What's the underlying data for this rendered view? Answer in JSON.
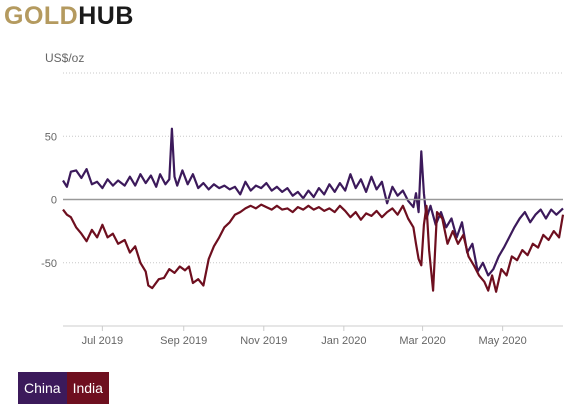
{
  "header": {
    "logo_gold": "GOLD",
    "logo_hub": "HUB"
  },
  "legend": [
    {
      "label": "China",
      "color": "#3c1a5b"
    },
    {
      "label": "India",
      "color": "#6e0f1f"
    }
  ],
  "chart_data": {
    "type": "line",
    "unit_label": "US$/oz",
    "ylim": [
      -100,
      100
    ],
    "yticks": [
      {
        "value": 50,
        "label": "50"
      },
      {
        "value": 0,
        "label": "0"
      },
      {
        "value": -50,
        "label": "-50"
      }
    ],
    "xlim": [
      "2019-06-15",
      "2020-06-30"
    ],
    "xticks": [
      {
        "date": "2019-07-15",
        "label": "Jul 2019"
      },
      {
        "date": "2019-09-15",
        "label": "Sep 2019"
      },
      {
        "date": "2019-11-15",
        "label": "Nov 2019"
      },
      {
        "date": "2020-01-15",
        "label": "Jan 2020"
      },
      {
        "date": "2020-03-15",
        "label": "Mar 2020"
      },
      {
        "date": "2020-05-15",
        "label": "May 2020"
      }
    ],
    "grid": true,
    "legend_position": "bottom-left",
    "series": [
      {
        "name": "China",
        "color": "#3c1a5b",
        "points": [
          [
            "2019-06-15",
            15
          ],
          [
            "2019-06-18",
            10
          ],
          [
            "2019-06-21",
            22
          ],
          [
            "2019-06-25",
            23
          ],
          [
            "2019-06-29",
            17
          ],
          [
            "2019-07-03",
            24
          ],
          [
            "2019-07-07",
            12
          ],
          [
            "2019-07-11",
            14
          ],
          [
            "2019-07-15",
            9
          ],
          [
            "2019-07-19",
            16
          ],
          [
            "2019-07-23",
            11
          ],
          [
            "2019-07-27",
            15
          ],
          [
            "2019-08-01",
            11
          ],
          [
            "2019-08-05",
            18
          ],
          [
            "2019-08-09",
            11
          ],
          [
            "2019-08-13",
            20
          ],
          [
            "2019-08-17",
            13
          ],
          [
            "2019-08-21",
            19
          ],
          [
            "2019-08-25",
            10
          ],
          [
            "2019-08-28",
            20
          ],
          [
            "2019-09-01",
            12
          ],
          [
            "2019-09-04",
            16
          ],
          [
            "2019-09-06",
            56
          ],
          [
            "2019-09-08",
            18
          ],
          [
            "2019-09-10",
            11
          ],
          [
            "2019-09-14",
            23
          ],
          [
            "2019-09-18",
            12
          ],
          [
            "2019-09-22",
            20
          ],
          [
            "2019-09-26",
            9
          ],
          [
            "2019-09-30",
            13
          ],
          [
            "2019-10-04",
            8
          ],
          [
            "2019-10-08",
            12
          ],
          [
            "2019-10-12",
            9
          ],
          [
            "2019-10-16",
            11
          ],
          [
            "2019-10-20",
            8
          ],
          [
            "2019-10-24",
            10
          ],
          [
            "2019-10-28",
            4
          ],
          [
            "2019-11-01",
            14
          ],
          [
            "2019-11-05",
            7
          ],
          [
            "2019-11-09",
            11
          ],
          [
            "2019-11-13",
            9
          ],
          [
            "2019-11-17",
            13
          ],
          [
            "2019-11-21",
            7
          ],
          [
            "2019-11-25",
            10
          ],
          [
            "2019-11-29",
            6
          ],
          [
            "2019-12-03",
            9
          ],
          [
            "2019-12-07",
            3
          ],
          [
            "2019-12-11",
            6
          ],
          [
            "2019-12-15",
            1
          ],
          [
            "2019-12-19",
            7
          ],
          [
            "2019-12-23",
            2
          ],
          [
            "2019-12-27",
            9
          ],
          [
            "2019-12-31",
            4
          ],
          [
            "2020-01-04",
            12
          ],
          [
            "2020-01-08",
            6
          ],
          [
            "2020-01-12",
            13
          ],
          [
            "2020-01-16",
            7
          ],
          [
            "2020-01-20",
            20
          ],
          [
            "2020-01-24",
            9
          ],
          [
            "2020-01-28",
            16
          ],
          [
            "2020-02-01",
            6
          ],
          [
            "2020-02-05",
            18
          ],
          [
            "2020-02-09",
            8
          ],
          [
            "2020-02-13",
            14
          ],
          [
            "2020-02-17",
            -3
          ],
          [
            "2020-02-21",
            10
          ],
          [
            "2020-02-25",
            3
          ],
          [
            "2020-02-29",
            7
          ],
          [
            "2020-03-04",
            -1
          ],
          [
            "2020-03-08",
            -6
          ],
          [
            "2020-03-10",
            5
          ],
          [
            "2020-03-12",
            -10
          ],
          [
            "2020-03-14",
            38
          ],
          [
            "2020-03-16",
            5
          ],
          [
            "2020-03-18",
            -15
          ],
          [
            "2020-03-21",
            -5
          ],
          [
            "2020-03-25",
            -20
          ],
          [
            "2020-03-29",
            -10
          ],
          [
            "2020-04-02",
            -22
          ],
          [
            "2020-04-06",
            -15
          ],
          [
            "2020-04-10",
            -30
          ],
          [
            "2020-04-14",
            -18
          ],
          [
            "2020-04-18",
            -42
          ],
          [
            "2020-04-22",
            -35
          ],
          [
            "2020-04-26",
            -57
          ],
          [
            "2020-04-30",
            -50
          ],
          [
            "2020-05-04",
            -60
          ],
          [
            "2020-05-08",
            -55
          ],
          [
            "2020-05-12",
            -45
          ],
          [
            "2020-05-16",
            -38
          ],
          [
            "2020-05-20",
            -30
          ],
          [
            "2020-05-24",
            -22
          ],
          [
            "2020-05-28",
            -15
          ],
          [
            "2020-06-01",
            -10
          ],
          [
            "2020-06-05",
            -18
          ],
          [
            "2020-06-09",
            -12
          ],
          [
            "2020-06-13",
            -8
          ],
          [
            "2020-06-17",
            -15
          ],
          [
            "2020-06-21",
            -8
          ],
          [
            "2020-06-25",
            -12
          ],
          [
            "2020-06-30",
            -7
          ]
        ]
      },
      {
        "name": "India",
        "color": "#6e0f1f",
        "points": [
          [
            "2019-06-15",
            -8
          ],
          [
            "2019-06-18",
            -12
          ],
          [
            "2019-06-21",
            -14
          ],
          [
            "2019-06-25",
            -22
          ],
          [
            "2019-06-29",
            -27
          ],
          [
            "2019-07-03",
            -33
          ],
          [
            "2019-07-07",
            -24
          ],
          [
            "2019-07-11",
            -30
          ],
          [
            "2019-07-15",
            -20
          ],
          [
            "2019-07-19",
            -30
          ],
          [
            "2019-07-23",
            -27
          ],
          [
            "2019-07-27",
            -35
          ],
          [
            "2019-08-01",
            -32
          ],
          [
            "2019-08-05",
            -42
          ],
          [
            "2019-08-09",
            -37
          ],
          [
            "2019-08-13",
            -50
          ],
          [
            "2019-08-17",
            -57
          ],
          [
            "2019-08-19",
            -68
          ],
          [
            "2019-08-22",
            -70
          ],
          [
            "2019-08-27",
            -63
          ],
          [
            "2019-08-31",
            -62
          ],
          [
            "2019-09-04",
            -55
          ],
          [
            "2019-09-08",
            -58
          ],
          [
            "2019-09-12",
            -53
          ],
          [
            "2019-09-16",
            -56
          ],
          [
            "2019-09-19",
            -53
          ],
          [
            "2019-09-22",
            -66
          ],
          [
            "2019-09-26",
            -63
          ],
          [
            "2019-09-30",
            -68
          ],
          [
            "2019-10-04",
            -47
          ],
          [
            "2019-10-08",
            -37
          ],
          [
            "2019-10-12",
            -30
          ],
          [
            "2019-10-16",
            -22
          ],
          [
            "2019-10-20",
            -18
          ],
          [
            "2019-10-24",
            -12
          ],
          [
            "2019-10-28",
            -10
          ],
          [
            "2019-11-01",
            -7
          ],
          [
            "2019-11-05",
            -5
          ],
          [
            "2019-11-09",
            -7
          ],
          [
            "2019-11-13",
            -4
          ],
          [
            "2019-11-17",
            -6
          ],
          [
            "2019-11-21",
            -8
          ],
          [
            "2019-11-25",
            -5
          ],
          [
            "2019-11-29",
            -8
          ],
          [
            "2019-12-03",
            -7
          ],
          [
            "2019-12-07",
            -10
          ],
          [
            "2019-12-11",
            -6
          ],
          [
            "2019-12-15",
            -8
          ],
          [
            "2019-12-19",
            -5
          ],
          [
            "2019-12-23",
            -8
          ],
          [
            "2019-12-27",
            -6
          ],
          [
            "2019-12-31",
            -9
          ],
          [
            "2020-01-04",
            -7
          ],
          [
            "2020-01-08",
            -10
          ],
          [
            "2020-01-12",
            -5
          ],
          [
            "2020-01-16",
            -9
          ],
          [
            "2020-01-20",
            -14
          ],
          [
            "2020-01-24",
            -10
          ],
          [
            "2020-01-28",
            -16
          ],
          [
            "2020-02-01",
            -11
          ],
          [
            "2020-02-05",
            -13
          ],
          [
            "2020-02-09",
            -9
          ],
          [
            "2020-02-13",
            -14
          ],
          [
            "2020-02-17",
            -10
          ],
          [
            "2020-02-21",
            -7
          ],
          [
            "2020-02-25",
            -12
          ],
          [
            "2020-02-29",
            -5
          ],
          [
            "2020-03-04",
            -15
          ],
          [
            "2020-03-08",
            -22
          ],
          [
            "2020-03-10",
            -35
          ],
          [
            "2020-03-12",
            -47
          ],
          [
            "2020-03-14",
            -52
          ],
          [
            "2020-03-16",
            -20
          ],
          [
            "2020-03-18",
            -5
          ],
          [
            "2020-03-20",
            -40
          ],
          [
            "2020-03-23",
            -72
          ],
          [
            "2020-03-26",
            -10
          ],
          [
            "2020-03-30",
            -15
          ],
          [
            "2020-04-03",
            -35
          ],
          [
            "2020-04-07",
            -25
          ],
          [
            "2020-04-11",
            -35
          ],
          [
            "2020-04-15",
            -28
          ],
          [
            "2020-04-19",
            -45
          ],
          [
            "2020-04-23",
            -52
          ],
          [
            "2020-04-27",
            -60
          ],
          [
            "2020-05-01",
            -65
          ],
          [
            "2020-05-04",
            -72
          ],
          [
            "2020-05-07",
            -60
          ],
          [
            "2020-05-10",
            -73
          ],
          [
            "2020-05-14",
            -55
          ],
          [
            "2020-05-18",
            -60
          ],
          [
            "2020-05-22",
            -45
          ],
          [
            "2020-05-26",
            -48
          ],
          [
            "2020-05-30",
            -40
          ],
          [
            "2020-06-03",
            -44
          ],
          [
            "2020-06-07",
            -35
          ],
          [
            "2020-06-11",
            -38
          ],
          [
            "2020-06-15",
            -28
          ],
          [
            "2020-06-19",
            -32
          ],
          [
            "2020-06-23",
            -25
          ],
          [
            "2020-06-27",
            -30
          ],
          [
            "2020-06-30",
            -12
          ]
        ]
      }
    ]
  }
}
